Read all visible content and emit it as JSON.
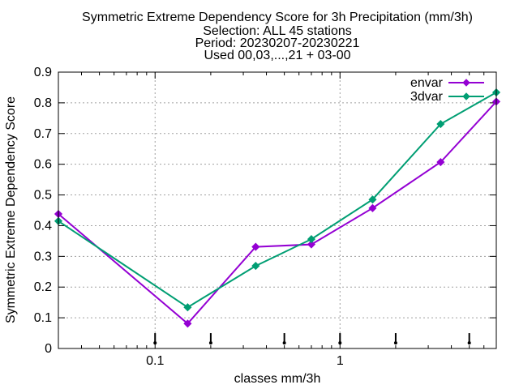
{
  "chart_data": {
    "type": "line",
    "title_lines": [
      "Symmetric Extreme Dependency Score  for 3h Precipitation (mm/3h)",
      "Selection: ALL     45 stations",
      "Period: 20230207-20230221",
      "Used 00,03,...,21 + 03-00"
    ],
    "xlabel": "classes mm/3h",
    "ylabel": "Symmetric Extreme Dependency Score",
    "x_scale": "log",
    "xlim": [
      0.03,
      7.0
    ],
    "ylim": [
      0,
      0.9
    ],
    "x_ticks": [
      {
        "value": 0.1,
        "label": "0.1"
      },
      {
        "value": 1,
        "label": "1"
      }
    ],
    "y_ticks": [
      {
        "value": 0,
        "label": "0"
      },
      {
        "value": 0.1,
        "label": "0.1"
      },
      {
        "value": 0.2,
        "label": "0.2"
      },
      {
        "value": 0.3,
        "label": "0.3"
      },
      {
        "value": 0.4,
        "label": "0.4"
      },
      {
        "value": 0.5,
        "label": "0.5"
      },
      {
        "value": 0.6,
        "label": "0.6"
      },
      {
        "value": 0.7,
        "label": "0.7"
      },
      {
        "value": 0.8,
        "label": "0.8"
      },
      {
        "value": 0.9,
        "label": "0.9"
      }
    ],
    "class_bounds": [
      0.1,
      0.2,
      0.5,
      1.0,
      2.0,
      5.0
    ],
    "grid": true,
    "legend_position": "top-right",
    "series": [
      {
        "name": "envar",
        "color": "#9400d3",
        "x": [
          0.03,
          0.15,
          0.35,
          0.7,
          1.5,
          3.5,
          7.0
        ],
        "y": [
          0.438,
          0.081,
          0.331,
          0.339,
          0.457,
          0.607,
          0.804
        ]
      },
      {
        "name": "3dvar",
        "color": "#009e73",
        "x": [
          0.03,
          0.15,
          0.35,
          0.7,
          1.5,
          3.5,
          7.0
        ],
        "y": [
          0.415,
          0.134,
          0.269,
          0.356,
          0.485,
          0.731,
          0.834
        ]
      }
    ]
  }
}
